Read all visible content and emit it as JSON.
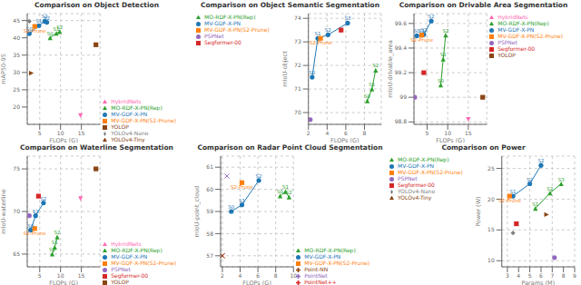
{
  "chart_data": [
    {
      "type": "scatter",
      "title": "Comparison on Object Detection",
      "x_label": "FLOPs (G)",
      "y_label": "mAP50-95",
      "xlim": [
        2.0,
        19.5
      ],
      "xticks": [
        5,
        10,
        15
      ],
      "ylim": [
        15,
        47
      ],
      "yticks": [
        20,
        25,
        30,
        35,
        40,
        45
      ],
      "grid": true,
      "legend": "lower right",
      "series": [
        {
          "name": "MV-GDF-X-PN",
          "color": "#1f77b4",
          "marker": "circle",
          "line_style": "solid",
          "x": [
            2.5,
            4.8,
            6.2,
            6.7
          ],
          "values": [
            41.2,
            43.5,
            44.8,
            44.5
          ],
          "annotations": [
            "S0",
            "S1",
            "S2",
            "S2"
          ]
        },
        {
          "name": "MV-GDF-X-PN(S2-Prune)",
          "color": "#ff7f0e",
          "marker": "square",
          "line_style": "none",
          "x": [
            3.8
          ],
          "values": [
            43.3
          ],
          "annotations": [
            "S2-Prune"
          ]
        },
        {
          "name": "MO-RDF-X-PN(Rep)",
          "color": "#2ca02c",
          "marker": "triangle_up",
          "line_style": "solid",
          "x": [
            7.5,
            9.0,
            9.8
          ],
          "values": [
            40.0,
            41.3,
            41.8
          ],
          "annotations": [
            "S0",
            "S1",
            "S2"
          ]
        },
        {
          "name": "YOLOP",
          "color": "#8B4513",
          "marker": "square",
          "line_style": "none",
          "x": [
            18.5
          ],
          "values": [
            38.0
          ]
        },
        {
          "name": "HybridNets",
          "color": "#ff69b4",
          "marker": "triangle_down",
          "line_style": "none",
          "x": [
            14.8
          ],
          "values": [
            17.5
          ]
        },
        {
          "name": "YOLOv4-Tiny",
          "color": "#8B4513",
          "marker": "triangle_right",
          "line_style": "none",
          "x": [
            3.0
          ],
          "values": [
            29.8
          ]
        },
        {
          "name": "YOLOv4-Nano",
          "color": "#808080",
          "marker": "diamond",
          "line_style": "none",
          "x": [
            2.5
          ],
          "values": [
            44.8
          ]
        }
      ]
    },
    {
      "type": "scatter",
      "title": "Comparison on Object Semantic Segmentation",
      "x_label": "FLOPs (G)",
      "y_label": "mIoU-object",
      "xlim": [
        2.0,
        9.8
      ],
      "xticks": [
        2,
        4,
        6,
        8
      ],
      "ylim": [
        69.5,
        74.2
      ],
      "yticks": [
        70,
        71,
        72,
        73,
        74
      ],
      "grid": true,
      "legend": "upper left",
      "series": [
        {
          "name": "MV-GDF-X-PN",
          "color": "#1f77b4",
          "marker": "circle",
          "line_style": "solid",
          "x": [
            2.4,
            3.0,
            4.1,
            6.2
          ],
          "values": [
            71.5,
            73.15,
            73.3,
            73.8
          ],
          "annotations": [
            "S0",
            "S1",
            "S2",
            "S3"
          ]
        },
        {
          "name": "MV-GDF-X-PN(S2-Prune)",
          "color": "#ff7f0e",
          "marker": "square",
          "line_style": "none",
          "x": [
            3.3
          ],
          "values": [
            73.15
          ],
          "annotations": [
            "S2-Prune"
          ]
        },
        {
          "name": "MO-RDF-X-PN(Rep)",
          "color": "#2ca02c",
          "marker": "triangle_up",
          "line_style": "solid",
          "x": [
            8.3,
            8.8,
            9.2
          ],
          "values": [
            70.5,
            71.0,
            71.8
          ],
          "annotations": [
            "S0",
            "S1",
            "S2"
          ]
        },
        {
          "name": "Segformer-00",
          "color": "#d62728",
          "marker": "square",
          "line_style": "none",
          "x": [
            5.5
          ],
          "values": [
            73.5
          ]
        },
        {
          "name": "PSPNet",
          "color": "#9467bd",
          "marker": "circle",
          "line_style": "none",
          "x": [
            2.2
          ],
          "values": [
            69.7
          ]
        }
      ]
    },
    {
      "type": "scatter",
      "title": "Comparison on Drivable Area Segmentation",
      "x_label": "FLOPs (G)",
      "y_label": "mIoU-drivable_area",
      "xlim": [
        1.8,
        19.5
      ],
      "xticks": [
        5,
        10,
        15
      ],
      "ylim": [
        98.78,
        99.68
      ],
      "yticks": [
        98.8,
        99,
        99.2,
        99.4,
        99.6
      ],
      "grid": true,
      "legend": "upper right",
      "series": [
        {
          "name": "MV-GDF-X-PN",
          "color": "#1f77b4",
          "marker": "circle",
          "line_style": "solid",
          "x": [
            2.5,
            3.7,
            4.2,
            6.0
          ],
          "values": [
            99.5,
            99.505,
            99.51,
            99.62
          ],
          "annotations": [
            "S0",
            "S1",
            "S2",
            "S2"
          ]
        },
        {
          "name": "MV-GDF-X-PN(S2-Prune)",
          "color": "#ff7f0e",
          "marker": "square",
          "line_style": "none",
          "x": [
            3.7
          ],
          "values": [
            99.505
          ],
          "annotations": [
            "S2-Prune"
          ]
        },
        {
          "name": "MO-RDF-X-PN(Rep)",
          "color": "#2ca02c",
          "marker": "triangle_up",
          "line_style": "solid",
          "x": [
            8.3,
            8.9,
            9.5
          ],
          "values": [
            99.1,
            99.31,
            99.505
          ],
          "annotations": [
            "S0",
            "S1",
            "S2"
          ]
        },
        {
          "name": "Segformer-00",
          "color": "#d62728",
          "marker": "square",
          "line_style": "none",
          "x": [
            4.2
          ],
          "values": [
            99.2
          ]
        },
        {
          "name": "PSPNet",
          "color": "#9467bd",
          "marker": "circle",
          "line_style": "none",
          "x": [
            2.0
          ],
          "values": [
            99.0
          ]
        },
        {
          "name": "YOLOP",
          "color": "#8B4513",
          "marker": "square",
          "line_style": "none",
          "x": [
            18.5
          ],
          "values": [
            99.0
          ]
        },
        {
          "name": "HybridNets",
          "color": "#ff69b4",
          "marker": "triangle_down",
          "line_style": "none",
          "x": [
            15.0
          ],
          "values": [
            98.82
          ]
        }
      ]
    },
    {
      "type": "scatter",
      "title": "Comparison on Waterline Segmentation",
      "x_label": "FLOPs (G)",
      "y_label": "mIoU-waterline",
      "xlim": [
        2.0,
        19.5
      ],
      "xticks": [
        5,
        10,
        15
      ],
      "ylim": [
        63.5,
        76.5
      ],
      "yticks": [
        65,
        70,
        75
      ],
      "grid": true,
      "legend": "lower right",
      "series": [
        {
          "name": "MV-GDF-X-PN",
          "color": "#1f77b4",
          "marker": "circle",
          "line_style": "solid",
          "x": [
            2.8,
            4.0,
            5.9
          ],
          "values": [
            67.8,
            69.5,
            71.0
          ],
          "annotations": [
            "S0",
            "S1",
            "S2"
          ]
        },
        {
          "name": "MV-GDF-X-PN(S2-Prune)",
          "color": "#ff7f0e",
          "marker": "square",
          "line_style": "none",
          "x": [
            3.8
          ],
          "values": [
            68.0
          ],
          "annotations": [
            "S2-Prune"
          ]
        },
        {
          "name": "MO-RDF-X-PN(Rep)",
          "color": "#2ca02c",
          "marker": "triangle_up",
          "line_style": "solid",
          "x": [
            8.0,
            8.6,
            9.2
          ],
          "values": [
            65.0,
            65.8,
            67.0
          ],
          "annotations": [
            "S0",
            "S1",
            "S2"
          ]
        },
        {
          "name": "Segformer-00",
          "color": "#d62728",
          "marker": "square",
          "line_style": "none",
          "x": [
            4.7
          ],
          "values": [
            71.8
          ]
        },
        {
          "name": "PSPNet",
          "color": "#9467bd",
          "marker": "circle",
          "line_style": "none",
          "x": [
            2.5
          ],
          "values": [
            69.5
          ]
        },
        {
          "name": "YOLOP",
          "color": "#8B4513",
          "marker": "square",
          "line_style": "none",
          "x": [
            18.5
          ],
          "values": [
            75.0
          ]
        },
        {
          "name": "HybridNets",
          "color": "#ff69b4",
          "marker": "triangle_down",
          "line_style": "none",
          "x": [
            14.8
          ],
          "values": [
            71.5
          ]
        }
      ]
    },
    {
      "type": "scatter",
      "title": "Comparison on Radar Point Cloud Segmentation",
      "x_label": "FLOPs (G)",
      "y_label": "mIoU-point_cloud",
      "xlim": [
        1.8,
        10.0
      ],
      "xticks": [
        2,
        4,
        6,
        8,
        10
      ],
      "ylim": [
        56.5,
        61.5
      ],
      "yticks": [
        57,
        58,
        59,
        60,
        61
      ],
      "grid": true,
      "legend": "lower right",
      "series": [
        {
          "name": "MV-GDF-X-PN",
          "color": "#1f77b4",
          "marker": "circle",
          "line_style": "solid",
          "x": [
            3.0,
            4.2,
            6.1
          ],
          "values": [
            59.0,
            59.3,
            60.4
          ],
          "annotations": [
            "S0",
            "S1",
            "S2"
          ]
        },
        {
          "name": "MV-GDF-X-PN(S2-Prune)",
          "color": "#ff7f0e",
          "marker": "square",
          "line_style": "none",
          "x": [
            4.2
          ],
          "values": [
            60.3
          ],
          "annotations": [
            "S2-Prune"
          ]
        },
        {
          "name": "MO-RDF-X-PN(Rep)",
          "color": "#2ca02c",
          "marker": "triangle_up",
          "line_style": "solid",
          "x": [
            8.5,
            9.1,
            9.5
          ],
          "values": [
            59.7,
            59.9,
            59.65
          ],
          "annotations": [
            "S0",
            "S1",
            "S2"
          ]
        },
        {
          "name": "PointNet++",
          "color": "#d62728",
          "marker": "x",
          "line_style": "none",
          "x": [
            2.0
          ],
          "values": [
            57.0
          ]
        },
        {
          "name": "PointNet",
          "color": "#9467bd",
          "marker": "x",
          "line_style": "none",
          "x": [
            2.5
          ],
          "values": [
            60.6
          ]
        },
        {
          "name": "Point-NN",
          "color": "#8B4513",
          "marker": "x",
          "line_style": "none",
          "x": [
            2.0
          ],
          "values": [
            57.0
          ]
        }
      ]
    },
    {
      "type": "scatter",
      "title": "Comparison on Power",
      "x_label": "Params (M)",
      "y_label": "Power (W)",
      "xlim": [
        2.5,
        9.0
      ],
      "xticks": [
        3,
        4,
        5,
        6,
        7,
        8,
        9
      ],
      "ylim": [
        9.0,
        27.0
      ],
      "yticks": [
        10,
        15,
        20,
        25
      ],
      "grid": true,
      "legend": "upper left",
      "series": [
        {
          "name": "MV-GDF-X-PN",
          "color": "#1f77b4",
          "marker": "circle",
          "line_style": "solid",
          "x": [
            3.5,
            5.0,
            6.0
          ],
          "values": [
            20.5,
            22.5,
            25.5
          ],
          "annotations": [
            "S1",
            "S2",
            "S2"
          ]
        },
        {
          "name": "MV-GDF-X-PN(S2-Prune)",
          "color": "#ff7f0e",
          "marker": "square",
          "line_style": "none",
          "x": [
            3.2
          ],
          "values": [
            20.5
          ],
          "annotations": [
            "S2-Prune"
          ]
        },
        {
          "name": "MO-RDF-X-PN(Rep)",
          "color": "#2ca02c",
          "marker": "triangle_up",
          "line_style": "solid",
          "x": [
            5.5,
            6.8,
            7.8
          ],
          "values": [
            18.5,
            21.0,
            22.5
          ],
          "annotations": [
            "S1",
            "S2",
            "S3"
          ]
        },
        {
          "name": "YOLOv4-Tiny",
          "color": "#8B4513",
          "marker": "triangle_right",
          "line_style": "none",
          "x": [
            6.5
          ],
          "values": [
            17.5
          ]
        },
        {
          "name": "YOLOv4-Nano",
          "color": "#808080",
          "marker": "diamond",
          "line_style": "none",
          "x": [
            3.5
          ],
          "values": [
            14.5
          ]
        },
        {
          "name": "Segformer-00",
          "color": "#d62728",
          "marker": "square",
          "line_style": "none",
          "x": [
            3.8
          ],
          "values": [
            16.0
          ]
        },
        {
          "name": "PSPNet",
          "color": "#9467bd",
          "marker": "circle",
          "line_style": "none",
          "x": [
            7.2
          ],
          "values": [
            10.5
          ]
        }
      ]
    }
  ]
}
